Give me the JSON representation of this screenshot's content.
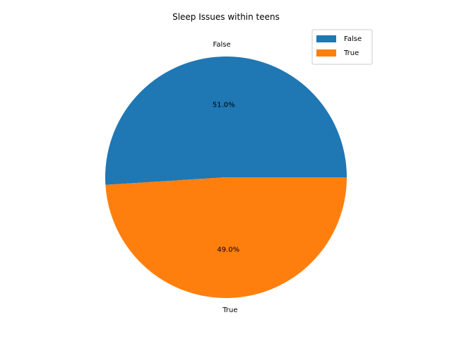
{
  "chart_data": {
    "type": "pie",
    "title": "Sleep Issues within teens",
    "labels": [
      "False",
      "True"
    ],
    "values": [
      51.0,
      49.0
    ],
    "value_labels": [
      "51.0%",
      "49.0%"
    ],
    "colors": [
      "#1f77b4",
      "#ff7f0e"
    ],
    "legend": {
      "position": "top-right",
      "entries": [
        "False",
        "True"
      ]
    }
  }
}
